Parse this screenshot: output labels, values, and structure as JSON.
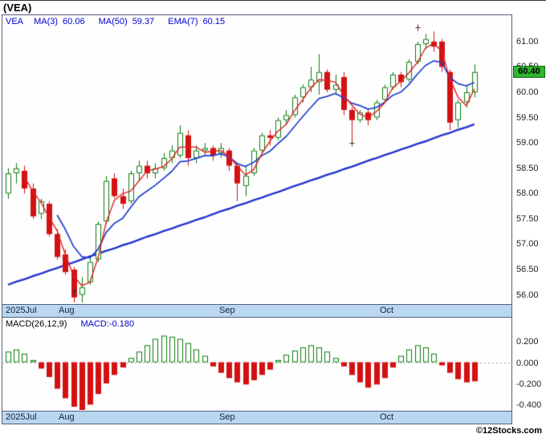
{
  "title": "(VEA)",
  "legend": {
    "symbol": "VEA",
    "items": [
      {
        "label": "MA(3)",
        "value": "60.06"
      },
      {
        "label": "MA(50)",
        "value": "59.37"
      },
      {
        "label": "EMA(7)",
        "value": "60.15"
      }
    ]
  },
  "price_badge": {
    "value": "60.40"
  },
  "macd_panel": {
    "label": "MACD(26,12,9)",
    "value": "MACD:-0.180"
  },
  "footer": {
    "copyright": "©12Stocks.com"
  },
  "colors": {
    "up": "#0b7a0b",
    "down": "#d41111",
    "ma3": "#e02020",
    "ema7": "#2040cc",
    "ma50": "#2233cc",
    "marker": "#5a241a",
    "badge_bg": "#2eb52e",
    "axis_bar_bg": "#b9d7ef",
    "legend_blue": "#0000cc"
  },
  "chart_data": [
    {
      "type": "candlestick",
      "title": "VEA daily price with MA(3), MA(50), EMA(7)",
      "ylim": [
        55.82,
        61.52
      ],
      "yticks": [
        61.0,
        60.5,
        60.0,
        59.5,
        59.0,
        58.5,
        58.0,
        57.5,
        57.0,
        56.5,
        56.0
      ],
      "x_labels": [
        {
          "text": "2025Jul",
          "x": 4
        },
        {
          "text": "Aug",
          "x": 70
        },
        {
          "text": "Sep",
          "x": 270
        },
        {
          "text": "Oct",
          "x": 470
        }
      ],
      "last_price": 60.4,
      "candles": [
        [
          58.0,
          58.5,
          57.9,
          58.4
        ],
        [
          58.4,
          58.6,
          58.2,
          58.5
        ],
        [
          58.45,
          58.55,
          58.0,
          58.1
        ],
        [
          58.1,
          58.2,
          57.5,
          57.55
        ],
        [
          57.6,
          57.9,
          57.5,
          57.85
        ],
        [
          57.8,
          57.85,
          57.15,
          57.2
        ],
        [
          57.2,
          57.3,
          56.7,
          56.75
        ],
        [
          56.8,
          56.9,
          56.4,
          56.45
        ],
        [
          56.5,
          56.55,
          55.85,
          55.95
        ],
        [
          56.0,
          56.35,
          55.85,
          56.15
        ],
        [
          56.25,
          56.75,
          56.2,
          56.65
        ],
        [
          56.7,
          57.45,
          56.65,
          57.4
        ],
        [
          57.45,
          58.35,
          57.4,
          58.25
        ],
        [
          58.3,
          58.4,
          57.9,
          57.95
        ],
        [
          57.95,
          58.1,
          57.7,
          57.8
        ],
        [
          57.85,
          58.45,
          57.8,
          58.4
        ],
        [
          58.4,
          58.65,
          58.25,
          58.55
        ],
        [
          58.55,
          58.65,
          58.3,
          58.4
        ],
        [
          58.4,
          58.6,
          58.3,
          58.5
        ],
        [
          58.5,
          58.8,
          58.45,
          58.7
        ],
        [
          58.7,
          58.95,
          58.6,
          58.85
        ],
        [
          58.75,
          59.35,
          58.7,
          59.2
        ],
        [
          59.15,
          59.25,
          58.55,
          58.7
        ],
        [
          58.7,
          58.95,
          58.6,
          58.85
        ],
        [
          58.85,
          59.0,
          58.75,
          58.9
        ],
        [
          58.9,
          58.95,
          58.65,
          58.75
        ],
        [
          58.8,
          59.0,
          58.7,
          58.9
        ],
        [
          58.85,
          58.9,
          58.45,
          58.55
        ],
        [
          58.55,
          58.6,
          57.85,
          58.2
        ],
        [
          58.15,
          58.55,
          57.95,
          58.35
        ],
        [
          58.4,
          58.9,
          58.35,
          58.85
        ],
        [
          58.85,
          59.2,
          58.8,
          59.15
        ],
        [
          59.15,
          59.25,
          58.95,
          59.1
        ],
        [
          59.1,
          59.5,
          59.05,
          59.45
        ],
        [
          59.45,
          59.65,
          59.35,
          59.55
        ],
        [
          59.55,
          59.95,
          59.5,
          59.9
        ],
        [
          59.9,
          60.15,
          59.8,
          60.1
        ],
        [
          60.1,
          60.5,
          60.0,
          60.25
        ],
        [
          60.2,
          60.75,
          59.95,
          60.4
        ],
        [
          60.4,
          60.45,
          60.0,
          60.05
        ],
        [
          60.05,
          60.35,
          59.95,
          60.15
        ],
        [
          60.3,
          60.4,
          59.55,
          59.65
        ],
        [
          59.65,
          59.7,
          59.05,
          59.45
        ],
        [
          59.45,
          59.65,
          59.4,
          59.6
        ],
        [
          59.6,
          59.65,
          59.35,
          59.45
        ],
        [
          59.5,
          59.85,
          59.45,
          59.8
        ],
        [
          59.85,
          60.15,
          59.8,
          60.1
        ],
        [
          60.1,
          60.4,
          60.05,
          60.35
        ],
        [
          60.35,
          60.4,
          60.1,
          60.2
        ],
        [
          60.25,
          60.65,
          60.2,
          60.6
        ],
        [
          60.6,
          61.0,
          60.55,
          60.95
        ],
        [
          60.95,
          61.15,
          60.85,
          61.05
        ],
        [
          61.0,
          61.2,
          60.8,
          60.9
        ],
        [
          61.0,
          61.05,
          60.4,
          60.5
        ],
        [
          60.4,
          60.45,
          59.25,
          59.4
        ],
        [
          59.45,
          59.85,
          59.3,
          59.8
        ],
        [
          59.8,
          60.15,
          59.7,
          60.0
        ],
        [
          60.0,
          60.55,
          59.9,
          60.4
        ]
      ],
      "overlays": {
        "ma3": {
          "type": "sma",
          "period": 3,
          "last": 60.06
        },
        "ema7": {
          "type": "ema",
          "period": 7,
          "last": 60.15
        },
        "ma50": {
          "type": "sma",
          "period": 50,
          "last": 59.37,
          "values": [
            56.2,
            56.26,
            56.31,
            56.37,
            56.42,
            56.48,
            56.53,
            56.59,
            56.64,
            56.7,
            56.76,
            56.81,
            56.87,
            56.92,
            56.98,
            57.03,
            57.09,
            57.15,
            57.2,
            57.26,
            57.31,
            57.37,
            57.42,
            57.48,
            57.53,
            57.59,
            57.65,
            57.7,
            57.76,
            57.81,
            57.87,
            57.92,
            57.98,
            58.03,
            58.09,
            58.15,
            58.2,
            58.26,
            58.31,
            58.37,
            58.42,
            58.48,
            58.53,
            58.59,
            58.65,
            58.7,
            58.76,
            58.81,
            58.87,
            58.92,
            58.98,
            59.03,
            59.09,
            59.15,
            59.2,
            59.26,
            59.31,
            59.37
          ]
        }
      },
      "markers": [
        {
          "i": 8,
          "price": 56.08
        },
        {
          "i": 42,
          "price": 59.0
        },
        {
          "i": 50,
          "price": 61.28
        }
      ]
    },
    {
      "type": "bar",
      "title": "MACD(26,12,9) histogram",
      "last_value": -0.18,
      "ylim": [
        -0.45,
        0.42
      ],
      "yticks": [
        0.2,
        0.0,
        -0.2,
        -0.4
      ],
      "values": [
        0.1,
        0.12,
        0.08,
        0.02,
        -0.06,
        -0.14,
        -0.25,
        -0.34,
        -0.42,
        -0.45,
        -0.4,
        -0.3,
        -0.2,
        -0.12,
        -0.05,
        0.04,
        0.1,
        0.16,
        0.22,
        0.25,
        0.24,
        0.22,
        0.18,
        0.12,
        0.06,
        -0.04,
        -0.1,
        -0.15,
        -0.19,
        -0.21,
        -0.17,
        -0.12,
        -0.07,
        0.02,
        0.07,
        0.11,
        0.14,
        0.16,
        0.14,
        0.1,
        0.04,
        -0.04,
        -0.12,
        -0.19,
        -0.24,
        -0.21,
        -0.15,
        -0.05,
        0.06,
        0.12,
        0.16,
        0.14,
        0.08,
        -0.03,
        -0.1,
        -0.16,
        -0.19,
        -0.18
      ]
    }
  ]
}
